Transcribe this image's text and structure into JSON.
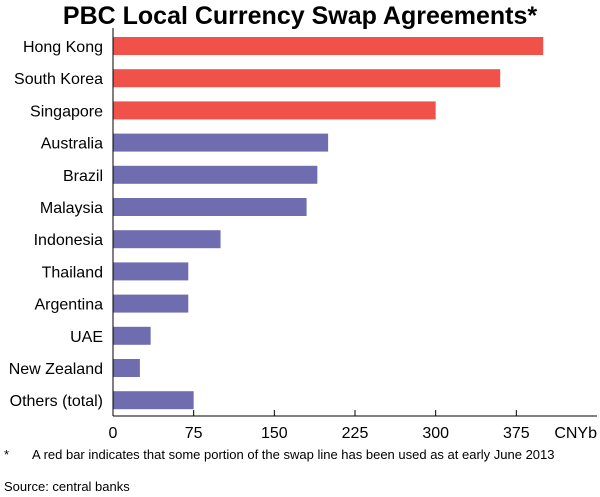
{
  "chart_data": {
    "type": "bar",
    "orientation": "horizontal",
    "title": "PBC Local Currency Swap Agreements*",
    "categories": [
      "Hong Kong",
      "South Korea",
      "Singapore",
      "Australia",
      "Brazil",
      "Malaysia",
      "Indonesia",
      "Thailand",
      "Argentina",
      "UAE",
      "New Zealand",
      "Others (total)"
    ],
    "values": [
      400,
      360,
      300,
      200,
      190,
      180,
      100,
      70,
      70,
      35,
      25,
      75
    ],
    "used": [
      true,
      true,
      true,
      false,
      false,
      false,
      false,
      false,
      false,
      false,
      false,
      false
    ],
    "colors": {
      "used": "#f0524a",
      "unused": "#6f6db0"
    },
    "xlim": [
      0,
      450
    ],
    "xticks": [
      "0",
      "75",
      "150",
      "225",
      "300",
      "375"
    ],
    "unit": "CNYb",
    "grid": false
  },
  "footnote": {
    "marker": "*",
    "text": "A red bar indicates that some portion of the swap line has been used as at early June 2013"
  },
  "source": "Source: central banks"
}
